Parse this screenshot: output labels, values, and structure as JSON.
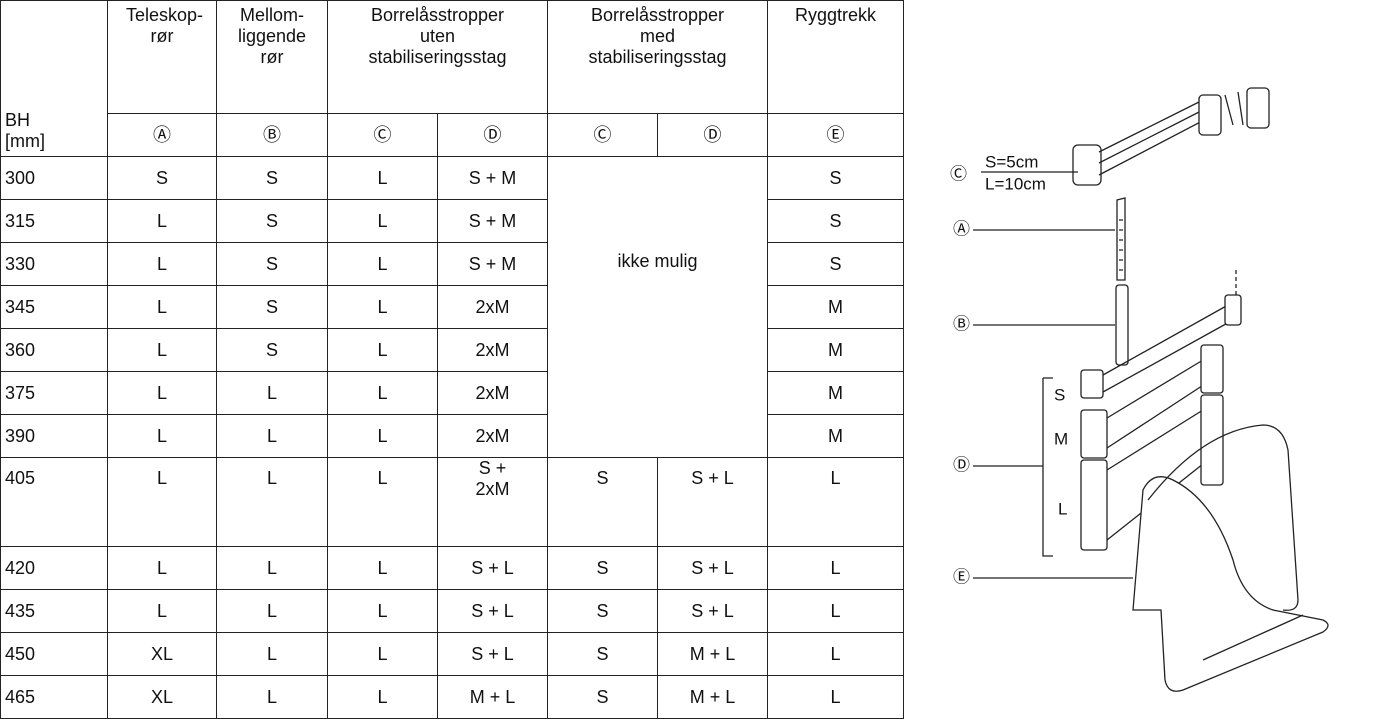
{
  "table": {
    "header": {
      "bh": "BH",
      "bh_unit": "[mm]",
      "columns": [
        "Teleskop-rør",
        "Mellom-liggende rør",
        "Borrelåsstropper uten stabiliseringsstag",
        "Borrelåsstropper med stabiliseringsstag",
        "Ryggtrekk"
      ],
      "symbols": [
        "Ⓐ",
        "Ⓑ",
        "Ⓒ",
        "Ⓓ",
        "Ⓒ",
        "Ⓓ",
        "Ⓔ"
      ]
    },
    "merged_note": "ikke mulig",
    "rows": [
      {
        "bh": "300",
        "a": "S",
        "b": "S",
        "c": "L",
        "d": "S + M",
        "e": "S"
      },
      {
        "bh": "315",
        "a": "L",
        "b": "S",
        "c": "L",
        "d": "S + M",
        "e": "S"
      },
      {
        "bh": "330",
        "a": "L",
        "b": "S",
        "c": "L",
        "d": "S + M",
        "e": "S"
      },
      {
        "bh": "345",
        "a": "L",
        "b": "S",
        "c": "L",
        "d": "2xM",
        "e": "M"
      },
      {
        "bh": "360",
        "a": "L",
        "b": "S",
        "c": "L",
        "d": "2xM",
        "e": "M"
      },
      {
        "bh": "375",
        "a": "L",
        "b": "L",
        "c": "L",
        "d": "2xM",
        "e": "M"
      },
      {
        "bh": "390",
        "a": "L",
        "b": "L",
        "c": "L",
        "d": "2xM",
        "e": "M"
      },
      {
        "bh": "405",
        "a": "L",
        "b": "L",
        "c": "L",
        "d": "S + 2xM",
        "c2": "S",
        "d2": "S + L",
        "e": "L"
      },
      {
        "bh": "420",
        "a": "L",
        "b": "L",
        "c": "L",
        "d": "S + L",
        "c2": "S",
        "d2": "S + L",
        "e": "L"
      },
      {
        "bh": "435",
        "a": "L",
        "b": "L",
        "c": "L",
        "d": "S + L",
        "c2": "S",
        "d2": "S + L",
        "e": "L"
      },
      {
        "bh": "450",
        "a": "XL",
        "b": "L",
        "c": "L",
        "d": "S + L",
        "c2": "S",
        "d2": "M + L",
        "e": "L"
      },
      {
        "bh": "465",
        "a": "XL",
        "b": "L",
        "c": "L",
        "d": "M + L",
        "c2": "S",
        "d2": "M + L",
        "e": "L"
      }
    ]
  },
  "diagram": {
    "c": "Ⓒ",
    "s_size": "S=5cm",
    "l_size": "L=10cm",
    "a": "Ⓐ",
    "b": "Ⓑ",
    "s": "S",
    "m": "M",
    "d": "Ⓓ",
    "l": "L",
    "e": "Ⓔ"
  }
}
